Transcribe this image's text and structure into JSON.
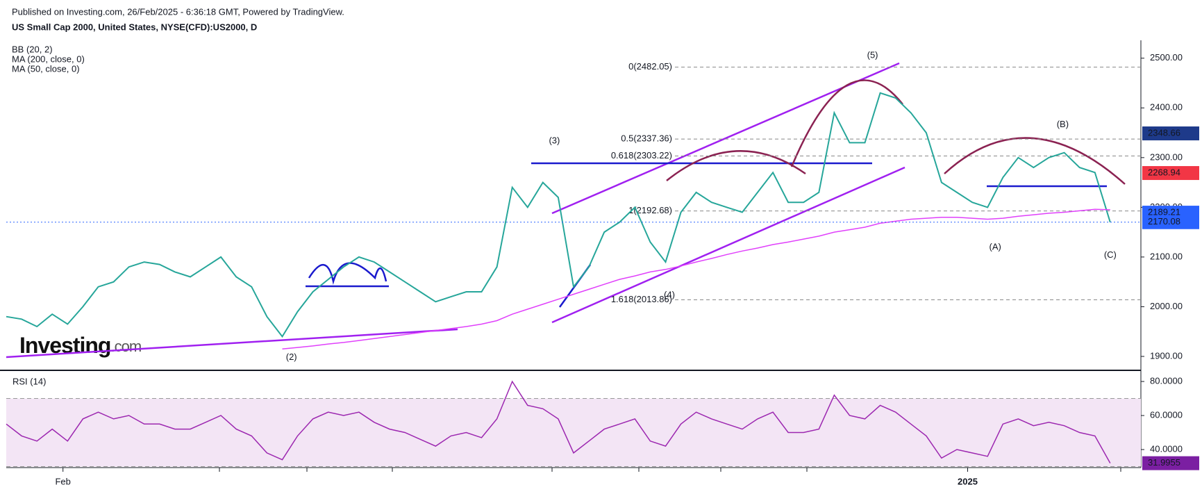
{
  "header": {
    "published": "Published on Investing.com, 26/Feb/2025 - 6:36:18 GMT, Powered by TradingView.",
    "title": "US Small Cap 2000, United States, NYSE(CFD):US2000, D",
    "indicators": [
      "BB (20, 2)",
      "MA (200, close, 0)",
      "MA (50, close, 0)"
    ],
    "logo": "Investing",
    "logo_suffix": ".com"
  },
  "chart_data": [
    {
      "type": "line",
      "xlim": [
        0,
        148
      ],
      "ylim": [
        1872,
        2536
      ],
      "yticks": [
        {
          "value": 1900,
          "label": "1900.00"
        },
        {
          "value": 2000,
          "label": "2000.00"
        },
        {
          "value": 2100,
          "label": "2100.00"
        },
        {
          "value": 2200,
          "label": "2200.00"
        },
        {
          "value": 2300,
          "label": "2300.00"
        },
        {
          "value": 2400,
          "label": "2400.00"
        },
        {
          "value": 2500,
          "label": "2500.00"
        }
      ],
      "xticks": [
        {
          "value": 7.4,
          "label": "Feb"
        },
        {
          "value": 125.4,
          "label": "2025"
        }
      ],
      "x": [
        0,
        2,
        4,
        6,
        8,
        10,
        12,
        14,
        16,
        18,
        20,
        22,
        24,
        26,
        28,
        30,
        32,
        34,
        36,
        38,
        40,
        42,
        44,
        46,
        48,
        50,
        52,
        54,
        56,
        58,
        60,
        62,
        64,
        66,
        68,
        70,
        72,
        74,
        76,
        78,
        80,
        82,
        84,
        86,
        88,
        90,
        92,
        94,
        96,
        98,
        100,
        102,
        104,
        106,
        108,
        110,
        112,
        114,
        116,
        118,
        120,
        122,
        124,
        126,
        128,
        130,
        132,
        134,
        136,
        138,
        140,
        142,
        144
      ],
      "series": [
        {
          "name": "Close",
          "color": "#26a69a",
          "values": [
            1980,
            1975,
            1960,
            1985,
            1965,
            2000,
            2040,
            2050,
            2080,
            2090,
            2085,
            2070,
            2060,
            2080,
            2100,
            2060,
            2040,
            1980,
            1940,
            1990,
            2030,
            2055,
            2080,
            2100,
            2090,
            2070,
            2050,
            2030,
            2010,
            2020,
            2030,
            2030,
            2080,
            2240,
            2200,
            2250,
            2220,
            2040,
            2080,
            2150,
            2170,
            2200,
            2130,
            2090,
            2190,
            2230,
            2210,
            2200,
            2190,
            2230,
            2270,
            2210,
            2210,
            2230,
            2390,
            2330,
            2330,
            2430,
            2420,
            2390,
            2350,
            2250,
            2230,
            2210,
            2200,
            2260,
            2300,
            2280,
            2300,
            2310,
            2280,
            2270,
            2170
          ]
        },
        {
          "name": "MA (200, close, 0)",
          "color": "#e040fb",
          "values": [
            null,
            null,
            null,
            null,
            null,
            null,
            null,
            null,
            null,
            null,
            null,
            null,
            null,
            null,
            null,
            null,
            null,
            null,
            1915,
            1918,
            1921,
            1925,
            1928,
            1932,
            1936,
            1940,
            1944,
            1948,
            1952,
            1956,
            1960,
            1965,
            1972,
            1985,
            1995,
            2005,
            2015,
            2025,
            2035,
            2045,
            2055,
            2062,
            2070,
            2075,
            2082,
            2090,
            2097,
            2105,
            2112,
            2118,
            2125,
            2130,
            2136,
            2142,
            2150,
            2155,
            2160,
            2168,
            2172,
            2176,
            2178,
            2180,
            2180,
            2178,
            2176,
            2178,
            2182,
            2185,
            2188,
            2190,
            2193,
            2196,
            2195
          ]
        }
      ],
      "fib_levels": [
        {
          "label": "0(2482.05)",
          "value": 2482.05
        },
        {
          "label": "0.5(2337.36)",
          "value": 2337.36
        },
        {
          "label": "0.618(2303.22)",
          "value": 2303.22
        },
        {
          "label": "1(2192.68)",
          "value": 2192.68
        },
        {
          "label": "1.618(2013.86)",
          "value": 2013.86
        }
      ],
      "annotations": [
        {
          "text": "(2)",
          "x": 37.2,
          "y": 1898
        },
        {
          "text": "(3)",
          "x": 71.5,
          "y": 2333
        },
        {
          "text": "(4)",
          "x": 86.5,
          "y": 2023
        },
        {
          "text": "(5)",
          "x": 113,
          "y": 2505
        },
        {
          "text": "(A)",
          "x": 129,
          "y": 2119
        },
        {
          "text": "(B)",
          "x": 137.8,
          "y": 2366
        },
        {
          "text": "(C)",
          "x": 144,
          "y": 2103
        }
      ],
      "price_tags": [
        {
          "value": 2348.66,
          "color": "#1e3a8a"
        },
        {
          "value": 2268.94,
          "color": "#f23645"
        },
        {
          "value": 2189.21,
          "color": "#2962ff"
        },
        {
          "value": 2170.08,
          "color": "#2962ff",
          "dotted": true
        }
      ]
    },
    {
      "type": "line",
      "title": "RSI (14)",
      "xlim": [
        0,
        148
      ],
      "ylim": [
        29.4,
        83.7
      ],
      "yticks": [
        {
          "value": 40,
          "label": "40.0000"
        },
        {
          "value": 60,
          "label": "60.0000"
        },
        {
          "value": 80,
          "label": "80.0000"
        }
      ],
      "band": [
        30,
        70
      ],
      "x": [
        0,
        2,
        4,
        6,
        8,
        10,
        12,
        14,
        16,
        18,
        20,
        22,
        24,
        26,
        28,
        30,
        32,
        34,
        36,
        38,
        40,
        42,
        44,
        46,
        48,
        50,
        52,
        54,
        56,
        58,
        60,
        62,
        64,
        66,
        68,
        70,
        72,
        74,
        76,
        78,
        80,
        82,
        84,
        86,
        88,
        90,
        92,
        94,
        96,
        98,
        100,
        102,
        104,
        106,
        108,
        110,
        112,
        114,
        116,
        118,
        120,
        122,
        124,
        126,
        128,
        130,
        132,
        134,
        136,
        138,
        140,
        142,
        144
      ],
      "series": [
        {
          "name": "RSI (14)",
          "color": "#9c27b0",
          "values": [
            55,
            48,
            45,
            52,
            45,
            58,
            62,
            58,
            60,
            55,
            55,
            52,
            52,
            56,
            60,
            52,
            48,
            38,
            34,
            48,
            58,
            62,
            60,
            62,
            56,
            52,
            50,
            46,
            42,
            48,
            50,
            47,
            58,
            80,
            66,
            64,
            58,
            38,
            45,
            52,
            55,
            58,
            45,
            42,
            55,
            62,
            58,
            55,
            52,
            58,
            62,
            50,
            50,
            52,
            72,
            60,
            58,
            66,
            62,
            55,
            48,
            35,
            40,
            38,
            36,
            55,
            58,
            54,
            56,
            54,
            50,
            48,
            32
          ]
        }
      ],
      "price_tags": [
        {
          "value": 31.9955,
          "color": "#7b1fa2"
        }
      ]
    }
  ]
}
